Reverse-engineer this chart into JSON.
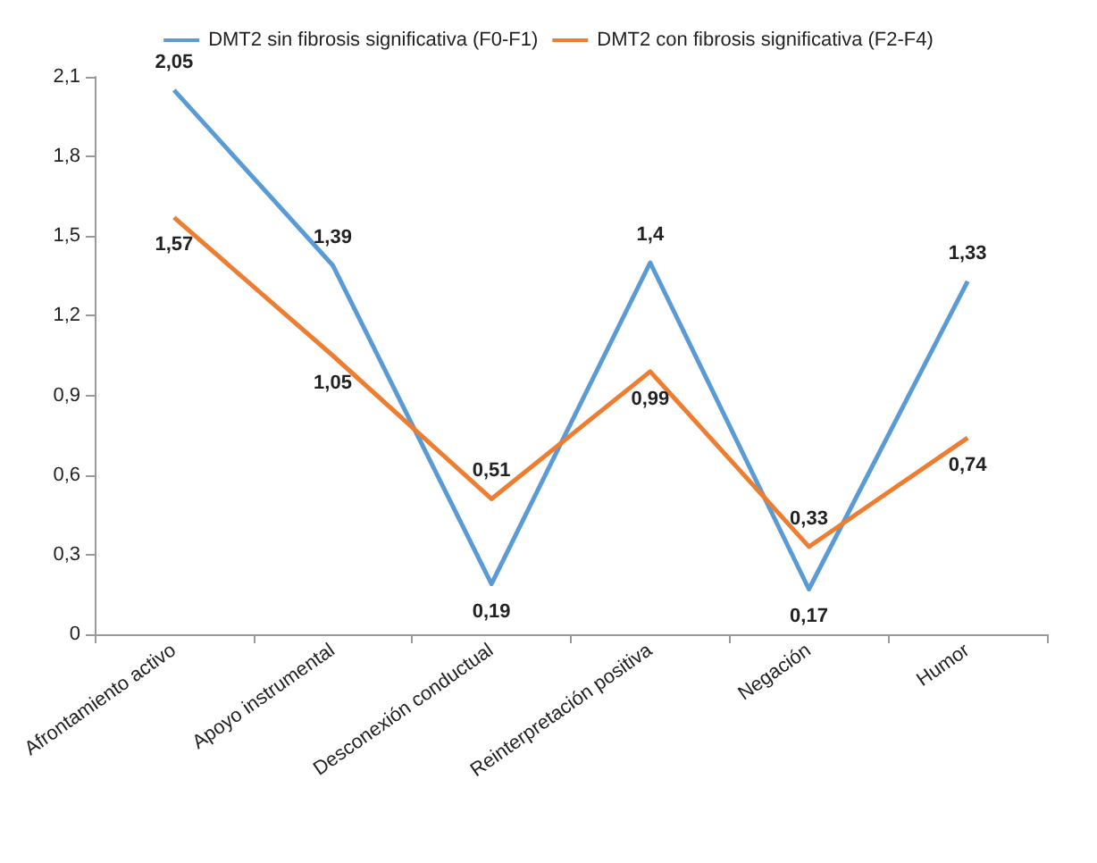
{
  "chart_data": {
    "type": "line",
    "categories": [
      "Afrontamiento activo",
      "Apoyo instrumental",
      "Desconexión conductual",
      "Reinterpretación positiva",
      "Negación",
      "Humor"
    ],
    "series": [
      {
        "name": "DMT2 sin fibrosis significativa (F0-F1)",
        "color": "#5b9bd5",
        "values": [
          2.05,
          1.39,
          0.19,
          1.4,
          0.17,
          1.33
        ],
        "value_labels": [
          "2,05",
          "1,39",
          "0,19",
          "1,4",
          "0,17",
          "1,33"
        ]
      },
      {
        "name": "DMT2 con fibrosis significativa (F2-F4)",
        "color": "#ed7d31",
        "values": [
          1.57,
          1.05,
          0.51,
          0.99,
          0.33,
          0.74
        ],
        "value_labels": [
          "1,57",
          "1,05",
          "0,51",
          "0,99",
          "0,33",
          "0,74"
        ]
      }
    ],
    "ylim": [
      0,
      2.1
    ],
    "yticks": [
      0,
      {
        "value": 0.3,
        "label": "0,3"
      },
      {
        "value": 0.6,
        "label": "0,6"
      },
      {
        "value": 0.9,
        "label": "0,9"
      },
      {
        "value": 1.2,
        "label": "1,2"
      },
      {
        "value": 1.5,
        "label": "1,5"
      },
      {
        "value": 1.8,
        "label": "1,8"
      },
      {
        "value": 2.1,
        "label": "2,1"
      }
    ],
    "grid": false,
    "legend": "top",
    "marker": "none",
    "line_style": "solid"
  }
}
